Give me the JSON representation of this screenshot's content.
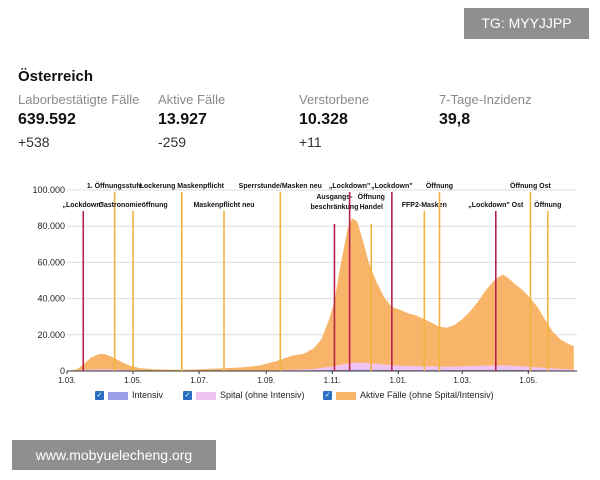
{
  "watermarks": {
    "top": "TG: MYYJJPP",
    "bottom": "www.mobyuelecheng.org"
  },
  "region": "Österreich",
  "stats": [
    {
      "label": "Laborbestätigte Fälle",
      "value": "639.592",
      "delta": "+538"
    },
    {
      "label": "Aktive Fälle",
      "value": "13.927",
      "delta": "-259"
    },
    {
      "label": "Verstorbene",
      "value": "10.328",
      "delta": "+11"
    },
    {
      "label": "7-Tage-Inzidenz",
      "value": "39,8",
      "delta": ""
    }
  ],
  "colors": {
    "active": "#f8b56a",
    "hospital": "#f1c3f1",
    "icu": "#9b9ee8",
    "red_line": "#b6224a",
    "yellow_line": "#f0b43c",
    "checkbox": "#2a6ec4"
  },
  "chart_data": {
    "type": "area",
    "title": "",
    "xlabel": "",
    "ylabel": "",
    "x_unit": "days",
    "x_start": "2020-03-01",
    "x_end": "2021-06-15",
    "ylim": [
      0,
      100000
    ],
    "y_ticks": [
      {
        "value": 0,
        "label": "0"
      },
      {
        "value": 20000,
        "label": "20.000"
      },
      {
        "value": 40000,
        "label": "40.000"
      },
      {
        "value": 60000,
        "label": "60.000"
      },
      {
        "value": 80000,
        "label": "80.000"
      },
      {
        "value": 100000,
        "label": "100.000"
      }
    ],
    "x_ticks": [
      {
        "date": "2020-03-01",
        "label": "1.03."
      },
      {
        "date": "2020-05-01",
        "label": "1.05."
      },
      {
        "date": "2020-07-01",
        "label": "1.07."
      },
      {
        "date": "2020-09-01",
        "label": "1.09."
      },
      {
        "date": "2020-11-01",
        "label": "1.11."
      },
      {
        "date": "2021-01-01",
        "label": "1.01."
      },
      {
        "date": "2021-03-01",
        "label": "1.03."
      },
      {
        "date": "2021-05-01",
        "label": "1.05."
      }
    ],
    "grid": "horizontal",
    "series": [
      {
        "name": "Aktive Fälle (ohne Spital/Intensiv)",
        "color_key": "active",
        "points": [
          [
            "2020-03-01",
            0
          ],
          [
            "2020-03-10",
            500
          ],
          [
            "2020-03-16",
            3000
          ],
          [
            "2020-03-23",
            6500
          ],
          [
            "2020-03-31",
            8500
          ],
          [
            "2020-04-05",
            8300
          ],
          [
            "2020-04-12",
            6800
          ],
          [
            "2020-04-20",
            4500
          ],
          [
            "2020-04-28",
            2500
          ],
          [
            "2020-05-08",
            1200
          ],
          [
            "2020-05-20",
            700
          ],
          [
            "2020-06-05",
            500
          ],
          [
            "2020-06-25",
            600
          ],
          [
            "2020-07-10",
            1000
          ],
          [
            "2020-07-25",
            1400
          ],
          [
            "2020-08-10",
            1800
          ],
          [
            "2020-08-25",
            2800
          ],
          [
            "2020-09-10",
            5000
          ],
          [
            "2020-09-25",
            7800
          ],
          [
            "2020-10-05",
            8500
          ],
          [
            "2020-10-15",
            11500
          ],
          [
            "2020-10-22",
            16000
          ],
          [
            "2020-10-29",
            26000
          ],
          [
            "2020-11-03",
            36000
          ],
          [
            "2020-11-07",
            50000
          ],
          [
            "2020-11-11",
            62000
          ],
          [
            "2020-11-15",
            74000
          ],
          [
            "2020-11-19",
            80000
          ],
          [
            "2020-11-24",
            78000
          ],
          [
            "2020-11-29",
            68000
          ],
          [
            "2020-12-05",
            55000
          ],
          [
            "2020-12-12",
            45000
          ],
          [
            "2020-12-19",
            37000
          ],
          [
            "2020-12-26",
            32000
          ],
          [
            "2021-01-02",
            31000
          ],
          [
            "2021-01-10",
            29000
          ],
          [
            "2021-01-17",
            28000
          ],
          [
            "2021-01-25",
            26000
          ],
          [
            "2021-02-01",
            24000
          ],
          [
            "2021-02-08",
            22000
          ],
          [
            "2021-02-15",
            21500
          ],
          [
            "2021-02-22",
            23000
          ],
          [
            "2021-03-01",
            26000
          ],
          [
            "2021-03-08",
            30000
          ],
          [
            "2021-03-15",
            35000
          ],
          [
            "2021-03-22",
            41000
          ],
          [
            "2021-03-29",
            46000
          ],
          [
            "2021-04-04",
            49000
          ],
          [
            "2021-04-08",
            50000
          ],
          [
            "2021-04-13",
            48000
          ],
          [
            "2021-04-19",
            45000
          ],
          [
            "2021-04-26",
            42000
          ],
          [
            "2021-05-03",
            38000
          ],
          [
            "2021-05-10",
            33000
          ],
          [
            "2021-05-17",
            26000
          ],
          [
            "2021-05-24",
            20000
          ],
          [
            "2021-05-31",
            16000
          ],
          [
            "2021-06-07",
            14000
          ],
          [
            "2021-06-12",
            13000
          ]
        ]
      },
      {
        "name": "Spital (ohne Intensiv)",
        "color_key": "hospital",
        "points": [
          [
            "2020-03-01",
            0
          ],
          [
            "2020-03-25",
            700
          ],
          [
            "2020-04-05",
            800
          ],
          [
            "2020-05-01",
            200
          ],
          [
            "2020-07-01",
            80
          ],
          [
            "2020-09-01",
            150
          ],
          [
            "2020-10-15",
            700
          ],
          [
            "2020-11-01",
            2000
          ],
          [
            "2020-11-20",
            4000
          ],
          [
            "2020-12-01",
            3800
          ],
          [
            "2021-01-01",
            2500
          ],
          [
            "2021-02-15",
            1800
          ],
          [
            "2021-03-20",
            2400
          ],
          [
            "2021-04-10",
            2600
          ],
          [
            "2021-05-10",
            1600
          ],
          [
            "2021-06-12",
            600
          ]
        ]
      },
      {
        "name": "Intensiv",
        "color_key": "icu",
        "points": [
          [
            "2020-03-01",
            0
          ],
          [
            "2020-04-05",
            250
          ],
          [
            "2020-05-15",
            60
          ],
          [
            "2020-09-01",
            50
          ],
          [
            "2020-11-25",
            700
          ],
          [
            "2021-01-01",
            500
          ],
          [
            "2021-04-10",
            600
          ],
          [
            "2021-06-12",
            200
          ]
        ]
      }
    ],
    "events": [
      {
        "date": "2020-03-16",
        "label": "„Lockdown\"",
        "color_key": "red_line",
        "row": 1
      },
      {
        "date": "2020-04-14",
        "label": "1. Öffnungsstufe",
        "color_key": "yellow_line",
        "row": 0
      },
      {
        "date": "2020-05-01",
        "label": "Gastronomieöffnung",
        "color_key": "yellow_line",
        "row": 1
      },
      {
        "date": "2020-06-15",
        "label": "Lockerung Maskenpflicht",
        "color_key": "yellow_line",
        "row": 0
      },
      {
        "date": "2020-07-24",
        "label": "Maskenpflicht neu",
        "color_key": "yellow_line",
        "row": 1
      },
      {
        "date": "2020-09-14",
        "label": "Sperrstunde/Masken neu",
        "color_key": "yellow_line",
        "row": 0
      },
      {
        "date": "2020-11-03",
        "label": "Ausgangs- beschränkung",
        "color_key": "red_line",
        "row": 2
      },
      {
        "date": "2020-11-17",
        "label": "„Lockdown\"",
        "color_key": "red_line",
        "row": 0
      },
      {
        "date": "2020-12-07",
        "label": "Öffnung Handel",
        "color_key": "yellow_line",
        "row": 2
      },
      {
        "date": "2020-12-26",
        "label": "„Lockdown\"",
        "color_key": "red_line",
        "row": 0
      },
      {
        "date": "2021-01-25",
        "label": "FFP2-Masken",
        "color_key": "yellow_line",
        "row": 1
      },
      {
        "date": "2021-02-08",
        "label": "Öffnung",
        "color_key": "yellow_line",
        "row": 0
      },
      {
        "date": "2021-04-01",
        "label": "„Lockdown\" Ost",
        "color_key": "red_line",
        "row": 1
      },
      {
        "date": "2021-05-03",
        "label": "Öffnung Ost",
        "color_key": "yellow_line",
        "row": 0
      },
      {
        "date": "2021-05-19",
        "label": "Öffnung",
        "color_key": "yellow_line",
        "row": 1
      }
    ],
    "legend": [
      {
        "label": "Intensiv",
        "color_key": "icu"
      },
      {
        "label": "Spital (ohne Intensiv)",
        "color_key": "hospital"
      },
      {
        "label": "Aktive Fälle (ohne Spital/Intensiv)",
        "color_key": "active"
      }
    ],
    "legend_position": "bottom"
  }
}
